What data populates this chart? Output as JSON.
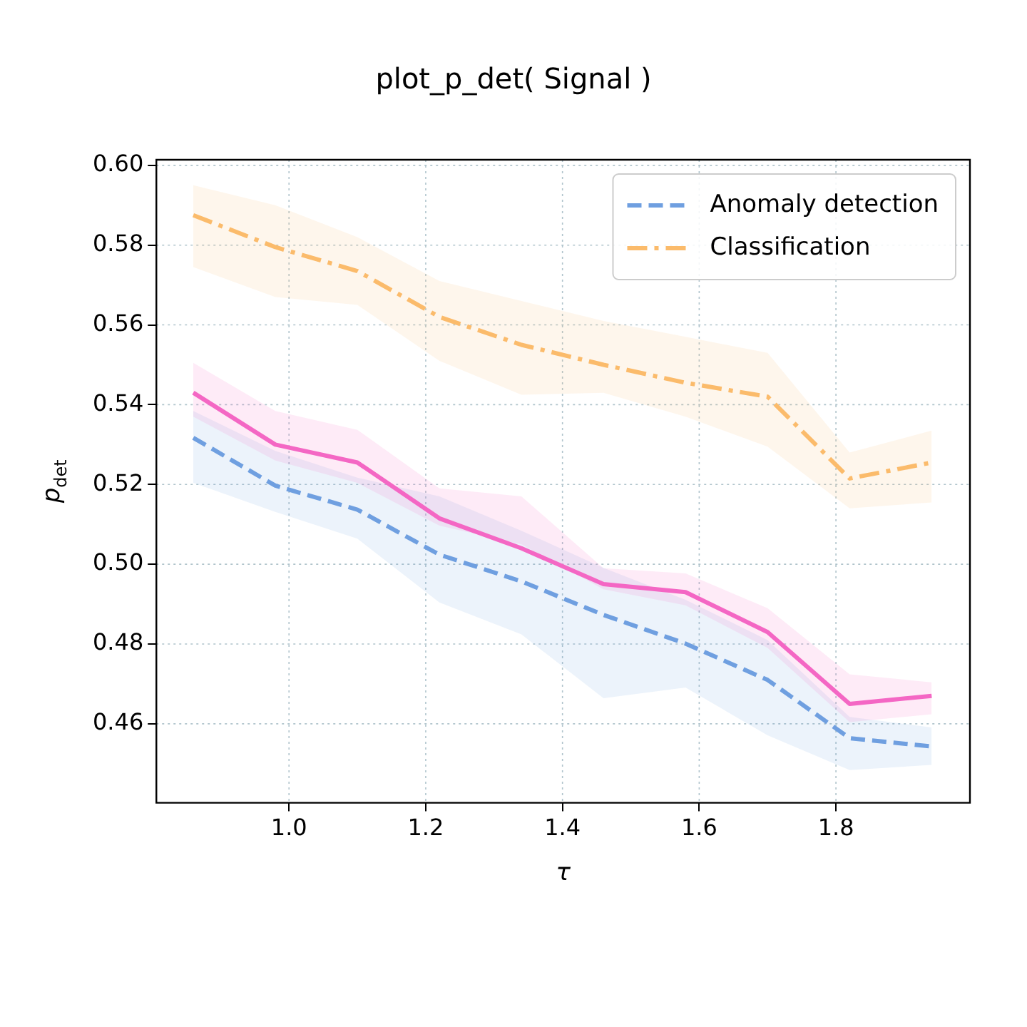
{
  "chart_data": {
    "type": "line",
    "title": "plot_p_det( Signal )",
    "xlabel": "τ",
    "ylabel": "p$_{det}$",
    "x": [
      0.86,
      0.98,
      1.1,
      1.22,
      1.34,
      1.46,
      1.58,
      1.7,
      1.82,
      1.94
    ],
    "xlim": [
      0.806,
      1.996
    ],
    "ylim": [
      0.4402,
      0.6014
    ],
    "xticks": [
      {
        "value": 1,
        "label": "1.0"
      },
      1.2,
      1.4,
      1.6,
      1.8
    ],
    "yticks": [
      0.46,
      0.48,
      {
        "value": 0.5,
        "label": "0.50"
      },
      0.52,
      0.54,
      0.56,
      0.58,
      {
        "value": 0.6,
        "label": "0.60"
      }
    ],
    "grid": true,
    "legend": "top right",
    "marker": "none",
    "series": [
      {
        "color": "#f467c4",
        "line_style": "solid",
        "values": [
          0.543,
          0.53,
          0.5255,
          0.5115,
          0.504,
          0.495,
          0.493,
          0.483,
          0.465,
          0.467
        ],
        "lower": [
          0.537,
          0.526,
          0.5204,
          0.5097,
          0.505,
          0.4937,
          0.4897,
          0.479,
          0.4604,
          0.4624
        ],
        "upper": [
          0.5505,
          0.5384,
          0.5337,
          0.519,
          0.517,
          0.499,
          0.4977,
          0.489,
          0.4724,
          0.4704
        ]
      },
      {
        "name": "Anomaly detection",
        "color": "#6f9fe0",
        "line_style": "dashed",
        "values": [
          0.5317,
          0.5197,
          0.5137,
          0.5024,
          0.4957,
          0.4873,
          0.4801,
          0.471,
          0.4564,
          0.4543
        ],
        "lower": [
          0.5204,
          0.5131,
          0.5064,
          0.4904,
          0.4824,
          0.4664,
          0.4691,
          0.4571,
          0.4484,
          0.4497
        ],
        "upper": [
          0.5384,
          0.5284,
          0.5217,
          0.517,
          0.5084,
          0.4991,
          0.4911,
          0.481,
          0.4617,
          0.4591
        ]
      },
      {
        "name": "Classification",
        "color": "#fbbb6b",
        "line_style": "dashdot",
        "values": [
          0.5875,
          0.5795,
          0.5735,
          0.562,
          0.555,
          0.55,
          0.5455,
          0.542,
          0.5215,
          0.5255
        ],
        "lower": [
          0.5745,
          0.567,
          0.565,
          0.551,
          0.5425,
          0.543,
          0.537,
          0.5295,
          0.514,
          0.5155
        ],
        "upper": [
          0.595,
          0.59,
          0.582,
          0.571,
          0.566,
          0.561,
          0.557,
          0.553,
          0.528,
          0.5335
        ]
      }
    ]
  }
}
